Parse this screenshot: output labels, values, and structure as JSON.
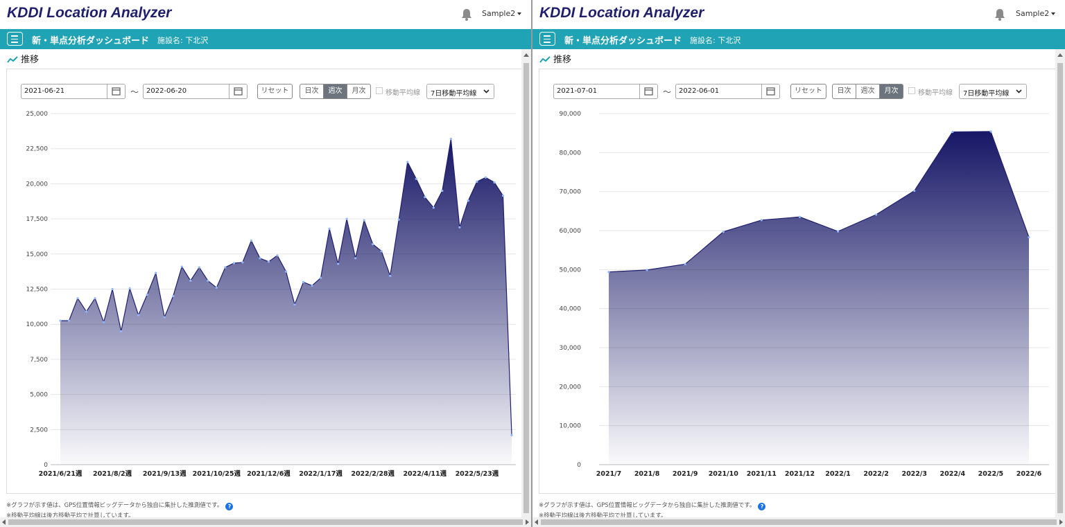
{
  "app": {
    "logo": "KDDI Location Analyzer",
    "user": "Sample2"
  },
  "nav": {
    "title": "新・単点分析ダッシュボード",
    "facility": "施設名: 下北沢"
  },
  "section_title": "推移",
  "notes": {
    "note1": "※グラフが示す値は、GPS位置情報ビッグデータから独自に集計した推測値です。",
    "note2": "※移動平均線は後方移動平均で計算しています。",
    "help": "?"
  },
  "panes": [
    {
      "start_date": "2021-06-21",
      "end_date": "2022-06-20",
      "tilde": "～",
      "reset_label": "リセット",
      "granularity": [
        "日次",
        "週次",
        "月次"
      ],
      "active_granularity": "週次",
      "ma_label": "移動平均線",
      "ma_select": "7日移動平均線"
    },
    {
      "start_date": "2021-07-01",
      "end_date": "2022-06-01",
      "tilde": "～",
      "reset_label": "リセット",
      "granularity": [
        "日次",
        "週次",
        "月次"
      ],
      "active_granularity": "月次",
      "ma_label": "移動平均線",
      "ma_select": "7日移動平均線"
    }
  ],
  "colors": {
    "accent": "#1fa3b5",
    "area_top": "#161666",
    "line": "#1f1f6e",
    "point": "#8fb8ff"
  },
  "chart_data": [
    {
      "type": "area",
      "x_tick_labels": [
        "2021/6/21週",
        "2021/8/2週",
        "2021/9/13週",
        "2021/10/25週",
        "2021/12/6週",
        "2022/1/17週",
        "2022/2/28週",
        "2022/4/11週",
        "2022/5/23週"
      ],
      "x_tick_every": 6,
      "y_ticks": [
        0,
        2500,
        5000,
        7500,
        10000,
        12500,
        15000,
        17500,
        20000,
        22500,
        25000
      ],
      "ylim": [
        0,
        25000
      ],
      "values": [
        10250,
        10250,
        11850,
        10900,
        11850,
        10150,
        12500,
        9500,
        12550,
        10650,
        12100,
        13650,
        10500,
        12000,
        14100,
        13100,
        14050,
        13100,
        12600,
        14050,
        14350,
        14400,
        15950,
        14700,
        14450,
        14900,
        13750,
        11400,
        13000,
        12750,
        13300,
        16800,
        14300,
        17500,
        14700,
        17400,
        15700,
        15200,
        13450,
        17450,
        21550,
        20350,
        19050,
        18300,
        19500,
        23200,
        16900,
        18800,
        20150,
        20450,
        20100,
        19150,
        2100
      ]
    },
    {
      "type": "area",
      "categories": [
        "2021/7",
        "2021/8",
        "2021/9",
        "2021/10",
        "2021/11",
        "2021/12",
        "2022/1",
        "2022/2",
        "2022/3",
        "2022/4",
        "2022/5",
        "2022/6"
      ],
      "y_ticks": [
        0,
        10000,
        20000,
        30000,
        40000,
        50000,
        60000,
        70000,
        80000,
        90000
      ],
      "ylim": [
        0,
        90000
      ],
      "values": [
        49400,
        49900,
        51400,
        59700,
        62700,
        63500,
        59800,
        64100,
        70200,
        85300,
        85400,
        58300
      ]
    }
  ]
}
